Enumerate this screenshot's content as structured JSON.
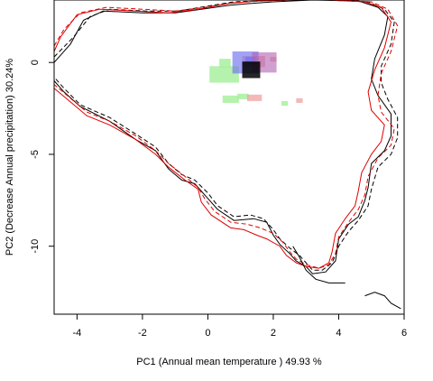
{
  "chart_data": {
    "type": "heatmap",
    "xlabel": "PC1 (Annual mean temperature ) 49.93 %",
    "ylabel": "PC2 (Decrease Annual precipitation) 30.24%",
    "xlim": [
      -4.7,
      6.0
    ],
    "ylim": [
      -13.7,
      3.4
    ],
    "x_ticks": [
      -4,
      -2,
      0,
      2,
      4,
      6
    ],
    "x_tick_labels": [
      "-4",
      "-2",
      "0",
      "2",
      "4",
      "6"
    ],
    "y_ticks": [
      0,
      -5,
      -10
    ],
    "y_tick_labels": [
      "0",
      "-5",
      "-10"
    ],
    "grid": false,
    "colors": {
      "envelope_black": "#000000",
      "envelope_red": "#e00000",
      "niche_green": "#a8f0a0",
      "niche_blue": "#7070f0",
      "niche_red": "#f0a0a0",
      "niche_core": "#000000"
    },
    "envelopes": [
      {
        "color": "black",
        "style": "solid",
        "points": [
          [
            -4.7,
            0.0
          ],
          [
            -4.2,
            1.0
          ],
          [
            -3.8,
            2.3
          ],
          [
            -3.2,
            2.8
          ],
          [
            -2.0,
            2.7
          ],
          [
            -1.0,
            2.7
          ],
          [
            -0.2,
            2.9
          ],
          [
            0.6,
            3.1
          ],
          [
            1.2,
            3.2
          ],
          [
            2.0,
            3.3
          ],
          [
            3.2,
            3.4
          ],
          [
            4.6,
            3.35
          ],
          [
            5.2,
            3.0
          ],
          [
            5.5,
            2.5
          ],
          [
            5.4,
            1.5
          ],
          [
            5.1,
            0.2
          ],
          [
            5.0,
            -0.9
          ],
          [
            5.2,
            -1.8
          ],
          [
            5.6,
            -2.8
          ],
          [
            5.6,
            -4.0
          ],
          [
            5.4,
            -4.8
          ],
          [
            5.0,
            -5.5
          ],
          [
            4.9,
            -6.8
          ],
          [
            4.8,
            -7.5
          ],
          [
            4.6,
            -8.4
          ],
          [
            4.3,
            -8.8
          ],
          [
            4.0,
            -9.6
          ],
          [
            3.9,
            -10.8
          ],
          [
            3.6,
            -11.4
          ],
          [
            3.2,
            -11.5
          ],
          [
            3.0,
            -11.1
          ],
          [
            2.7,
            -10.8
          ],
          [
            2.5,
            -10.4
          ],
          [
            2.2,
            -9.9
          ],
          [
            2.0,
            -9.4
          ],
          [
            1.8,
            -8.7
          ],
          [
            1.4,
            -8.5
          ],
          [
            0.8,
            -8.6
          ],
          [
            0.3,
            -8.0
          ],
          [
            0.0,
            -7.4
          ],
          [
            -0.4,
            -6.6
          ],
          [
            -0.8,
            -6.4
          ],
          [
            -1.2,
            -5.8
          ],
          [
            -1.6,
            -4.8
          ],
          [
            -2.2,
            -4.2
          ],
          [
            -3.0,
            -3.2
          ],
          [
            -3.9,
            -2.4
          ],
          [
            -4.4,
            -1.6
          ],
          [
            -4.7,
            -1.0
          ]
        ]
      },
      {
        "color": "black",
        "style": "dashed",
        "points": [
          [
            -4.7,
            0.3
          ],
          [
            -4.1,
            1.4
          ],
          [
            -3.6,
            2.5
          ],
          [
            -3.0,
            2.9
          ],
          [
            -1.9,
            2.8
          ],
          [
            -0.9,
            2.8
          ],
          [
            0.1,
            3.1
          ],
          [
            0.8,
            3.3
          ],
          [
            1.6,
            3.35
          ],
          [
            2.4,
            3.4
          ],
          [
            3.6,
            3.4
          ],
          [
            4.9,
            3.3
          ],
          [
            5.4,
            2.9
          ],
          [
            5.7,
            2.2
          ],
          [
            5.6,
            1.0
          ],
          [
            5.3,
            -0.2
          ],
          [
            5.3,
            -1.1
          ],
          [
            5.5,
            -2.0
          ],
          [
            5.8,
            -3.0
          ],
          [
            5.8,
            -4.1
          ],
          [
            5.6,
            -5.0
          ],
          [
            5.2,
            -5.7
          ],
          [
            5.0,
            -6.9
          ],
          [
            4.9,
            -7.8
          ],
          [
            4.6,
            -8.6
          ],
          [
            4.3,
            -9.2
          ],
          [
            4.0,
            -10.0
          ],
          [
            3.8,
            -10.9
          ],
          [
            3.5,
            -11.3
          ],
          [
            3.2,
            -11.3
          ],
          [
            3.0,
            -10.9
          ],
          [
            2.8,
            -10.5
          ],
          [
            2.5,
            -10.1
          ],
          [
            2.2,
            -9.6
          ],
          [
            2.0,
            -9.1
          ],
          [
            1.7,
            -8.5
          ],
          [
            1.3,
            -8.3
          ],
          [
            0.8,
            -8.4
          ],
          [
            0.3,
            -7.8
          ],
          [
            0.0,
            -7.1
          ],
          [
            -0.4,
            -6.4
          ],
          [
            -0.8,
            -6.1
          ],
          [
            -1.2,
            -5.5
          ],
          [
            -1.6,
            -4.6
          ],
          [
            -2.2,
            -3.9
          ],
          [
            -3.0,
            -3.0
          ],
          [
            -3.9,
            -2.3
          ],
          [
            -4.4,
            -1.4
          ],
          [
            -4.7,
            -0.8
          ]
        ]
      },
      {
        "color": "red",
        "style": "solid",
        "points": [
          [
            -4.7,
            0.6
          ],
          [
            -4.5,
            1.4
          ],
          [
            -4.0,
            2.6
          ],
          [
            -3.3,
            2.9
          ],
          [
            -2.2,
            2.8
          ],
          [
            -1.2,
            2.7
          ],
          [
            -0.3,
            2.9
          ],
          [
            0.6,
            3.2
          ],
          [
            1.5,
            3.35
          ],
          [
            2.5,
            3.4
          ],
          [
            3.7,
            3.4
          ],
          [
            4.8,
            3.3
          ],
          [
            5.3,
            3.0
          ],
          [
            5.6,
            2.2
          ],
          [
            5.4,
            0.8
          ],
          [
            5.1,
            -0.4
          ],
          [
            4.9,
            -1.6
          ],
          [
            5.0,
            -2.6
          ],
          [
            5.4,
            -3.4
          ],
          [
            5.3,
            -4.3
          ],
          [
            5.0,
            -5.0
          ],
          [
            4.7,
            -6.0
          ],
          [
            4.6,
            -7.0
          ],
          [
            4.5,
            -7.8
          ],
          [
            4.2,
            -8.5
          ],
          [
            3.9,
            -9.3
          ],
          [
            3.8,
            -10.3
          ],
          [
            3.7,
            -10.9
          ],
          [
            3.4,
            -11.2
          ],
          [
            3.0,
            -11.1
          ],
          [
            2.7,
            -10.9
          ],
          [
            2.4,
            -10.5
          ],
          [
            2.2,
            -10.0
          ],
          [
            1.8,
            -9.6
          ],
          [
            1.5,
            -9.4
          ],
          [
            1.1,
            -9.1
          ],
          [
            0.7,
            -9.0
          ],
          [
            0.1,
            -8.3
          ],
          [
            -0.2,
            -7.6
          ],
          [
            -0.3,
            -6.9
          ],
          [
            -0.7,
            -6.4
          ],
          [
            -1.2,
            -5.7
          ],
          [
            -1.6,
            -5.0
          ],
          [
            -2.2,
            -4.2
          ],
          [
            -3.0,
            -3.4
          ],
          [
            -3.7,
            -2.9
          ],
          [
            -4.3,
            -2.0
          ],
          [
            -4.7,
            -1.4
          ]
        ]
      },
      {
        "color": "red",
        "style": "dashed",
        "points": [
          [
            -4.7,
            0.9
          ],
          [
            -4.4,
            1.8
          ],
          [
            -3.9,
            2.7
          ],
          [
            -3.1,
            3.0
          ],
          [
            -2.0,
            2.9
          ],
          [
            -1.0,
            2.8
          ],
          [
            -0.1,
            3.0
          ],
          [
            0.8,
            3.25
          ],
          [
            1.7,
            3.35
          ],
          [
            2.7,
            3.4
          ],
          [
            3.9,
            3.4
          ],
          [
            5.0,
            3.3
          ],
          [
            5.5,
            2.9
          ],
          [
            5.8,
            2.0
          ],
          [
            5.6,
            0.6
          ],
          [
            5.3,
            -0.6
          ],
          [
            5.2,
            -1.8
          ],
          [
            5.3,
            -2.7
          ],
          [
            5.7,
            -3.6
          ],
          [
            5.6,
            -4.5
          ],
          [
            5.2,
            -5.2
          ],
          [
            4.9,
            -6.2
          ],
          [
            4.8,
            -7.2
          ],
          [
            4.6,
            -8.0
          ],
          [
            4.3,
            -8.7
          ],
          [
            4.0,
            -9.5
          ],
          [
            3.9,
            -10.4
          ],
          [
            3.7,
            -11.0
          ],
          [
            3.4,
            -11.2
          ],
          [
            3.0,
            -11.0
          ],
          [
            2.7,
            -10.7
          ],
          [
            2.5,
            -10.3
          ],
          [
            2.3,
            -9.8
          ],
          [
            2.0,
            -9.3
          ],
          [
            1.6,
            -9.0
          ],
          [
            1.2,
            -8.8
          ],
          [
            0.7,
            -8.7
          ],
          [
            0.2,
            -8.1
          ],
          [
            -0.1,
            -7.4
          ],
          [
            -0.3,
            -6.8
          ],
          [
            -0.7,
            -6.2
          ],
          [
            -1.2,
            -5.5
          ],
          [
            -1.6,
            -4.8
          ],
          [
            -2.2,
            -4.0
          ],
          [
            -3.0,
            -3.2
          ],
          [
            -3.7,
            -2.7
          ],
          [
            -4.3,
            -1.8
          ],
          [
            -4.7,
            -1.2
          ]
        ]
      },
      {
        "color": "black",
        "style": "solid",
        "points": [
          [
            4.8,
            -12.7
          ],
          [
            5.1,
            -12.5
          ],
          [
            5.4,
            -12.7
          ],
          [
            5.6,
            -13.1
          ],
          [
            5.9,
            -13.4
          ]
        ]
      },
      {
        "color": "black",
        "style": "solid",
        "points": [
          [
            2.6,
            -10.0
          ],
          [
            2.8,
            -10.6
          ],
          [
            3.0,
            -11.3
          ],
          [
            3.3,
            -11.8
          ],
          [
            3.7,
            -12.0
          ],
          [
            4.2,
            -12.0
          ]
        ]
      }
    ],
    "niche_cells": [
      {
        "cls": "green",
        "x": 0.05,
        "y": -1.1,
        "w": 0.9,
        "h": 0.9
      },
      {
        "cls": "green",
        "x": 0.35,
        "y": -0.3,
        "w": 0.35,
        "h": 0.5
      },
      {
        "cls": "green",
        "x": 0.45,
        "y": -2.2,
        "w": 0.5,
        "h": 0.4
      },
      {
        "cls": "green",
        "x": 0.9,
        "y": -2.0,
        "w": 0.35,
        "h": 0.3
      },
      {
        "cls": "green",
        "x": 2.25,
        "y": -2.35,
        "w": 0.2,
        "h": 0.25
      },
      {
        "cls": "red",
        "x": 1.05,
        "y": -0.25,
        "w": 0.7,
        "h": 0.6
      },
      {
        "cls": "red",
        "x": 1.9,
        "y": 0.05,
        "w": 0.2,
        "h": 0.25
      },
      {
        "cls": "red",
        "x": 2.7,
        "y": -2.2,
        "w": 0.2,
        "h": 0.25
      },
      {
        "cls": "red",
        "x": 1.2,
        "y": -2.1,
        "w": 0.45,
        "h": 0.35
      },
      {
        "cls": "blue",
        "x": 0.75,
        "y": -0.6,
        "w": 0.8,
        "h": 1.2
      },
      {
        "cls": "blue",
        "x": 1.15,
        "y": -0.1,
        "w": 0.3,
        "h": 0.4
      },
      {
        "cls": "purple",
        "x": 1.35,
        "y": -0.55,
        "w": 0.75,
        "h": 1.1
      },
      {
        "cls": "core",
        "x": 1.05,
        "y": -0.85,
        "w": 0.55,
        "h": 0.9
      }
    ]
  }
}
